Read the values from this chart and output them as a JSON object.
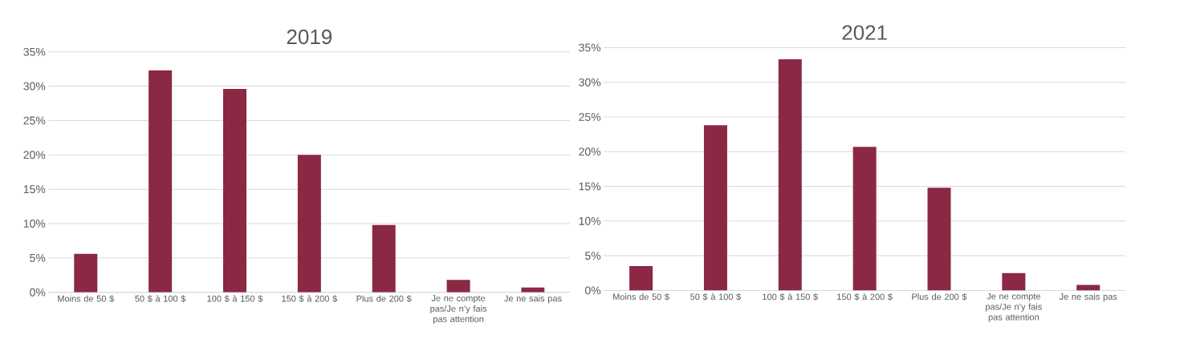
{
  "chart_data": [
    {
      "type": "bar",
      "title": "2019",
      "categories": [
        "Moins de 50 $",
        "50 $ à 100 $",
        "100 $ à 150 $",
        "150 $ à 200 $",
        "Plus de 200 $",
        "Je ne compte pas/Je n’y fais pas attention",
        "Je ne sais pas"
      ],
      "values": [
        5.6,
        32.3,
        29.6,
        20.0,
        9.8,
        1.8,
        0.7
      ],
      "color": "#8b2844",
      "ylim": [
        0,
        35
      ],
      "yticks": [
        {
          "value": 0,
          "label": "0%"
        },
        {
          "value": 5,
          "label": "5%"
        },
        {
          "value": 10,
          "label": "10%"
        },
        {
          "value": 15,
          "label": "15%"
        },
        {
          "value": 20,
          "label": "20%"
        },
        {
          "value": 25,
          "label": "25%"
        },
        {
          "value": 30,
          "label": "30%"
        },
        {
          "value": 35,
          "label": "35%"
        }
      ],
      "grid": "y"
    },
    {
      "type": "bar",
      "title": "2021",
      "categories": [
        "Moins de 50 $",
        "50 $ à 100 $",
        "100 $ à 150 $",
        "150 $ à 200 $",
        "Plus de 200 $",
        "Je ne compte pas/Je n’y fais pas attention",
        "Je ne sais pas"
      ],
      "values": [
        3.5,
        23.8,
        33.3,
        20.7,
        14.8,
        2.5,
        0.8
      ],
      "color": "#8b2844",
      "ylim": [
        0,
        35
      ],
      "yticks": [
        {
          "value": 0,
          "label": "0%"
        },
        {
          "value": 5,
          "label": "5%"
        },
        {
          "value": 10,
          "label": "10%"
        },
        {
          "value": 15,
          "label": "15%"
        },
        {
          "value": 20,
          "label": "20%"
        },
        {
          "value": 25,
          "label": "25%"
        },
        {
          "value": 30,
          "label": "30%"
        },
        {
          "value": 35,
          "label": "35%"
        }
      ],
      "grid": "y"
    }
  ]
}
